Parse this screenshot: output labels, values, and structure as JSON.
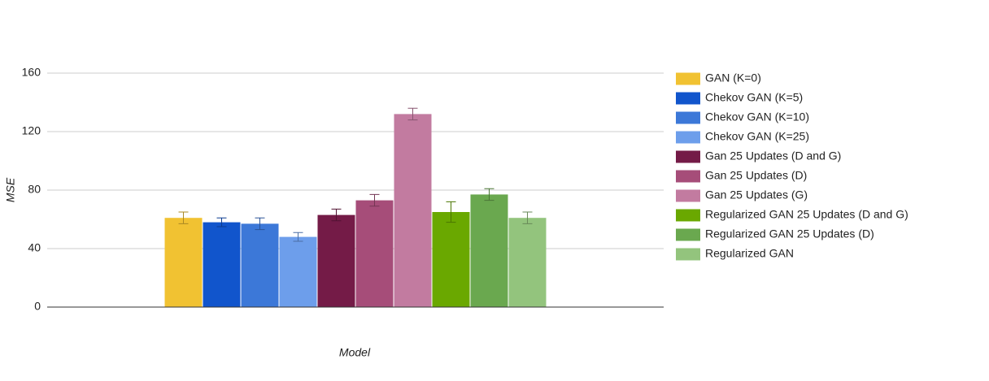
{
  "chart_data": {
    "type": "bar",
    "xlabel": "Model",
    "ylabel": "MSE",
    "categories": [
      null
    ],
    "ylim": [
      0,
      160
    ],
    "yticks": [
      0,
      40,
      80,
      120,
      160
    ],
    "grid": true,
    "legend": "right",
    "series": [
      {
        "name": "GAN (K=0)",
        "color": "#f1c232",
        "values": [
          61
        ],
        "errors": [
          4
        ]
      },
      {
        "name": "Chekov GAN (K=5)",
        "color": "#1155cc",
        "values": [
          58
        ],
        "errors": [
          3
        ]
      },
      {
        "name": "Chekov GAN (K=10)",
        "color": "#3c78d8",
        "values": [
          57
        ],
        "errors": [
          4
        ]
      },
      {
        "name": "Chekov GAN (K=25)",
        "color": "#6d9eeb",
        "values": [
          48
        ],
        "errors": [
          3
        ]
      },
      {
        "name": "Gan 25 Updates (D and G)",
        "color": "#741b47",
        "values": [
          63
        ],
        "errors": [
          4
        ]
      },
      {
        "name": "Gan 25 Updates (D)",
        "color": "#a64d79",
        "values": [
          73
        ],
        "errors": [
          4
        ]
      },
      {
        "name": "Gan 25 Updates (G)",
        "color": "#c27ba0",
        "values": [
          132
        ],
        "errors": [
          4
        ]
      },
      {
        "name": "Regularized GAN 25 Updates (D and G)",
        "color": "#6aa800",
        "values": [
          65
        ],
        "errors": [
          7
        ]
      },
      {
        "name": "Regularized GAN 25 Updates (D)",
        "color": "#6aa84f",
        "values": [
          77
        ],
        "errors": [
          4
        ]
      },
      {
        "name": "Regularized GAN",
        "color": "#93c47d",
        "values": [
          61
        ],
        "errors": [
          4
        ]
      }
    ]
  }
}
